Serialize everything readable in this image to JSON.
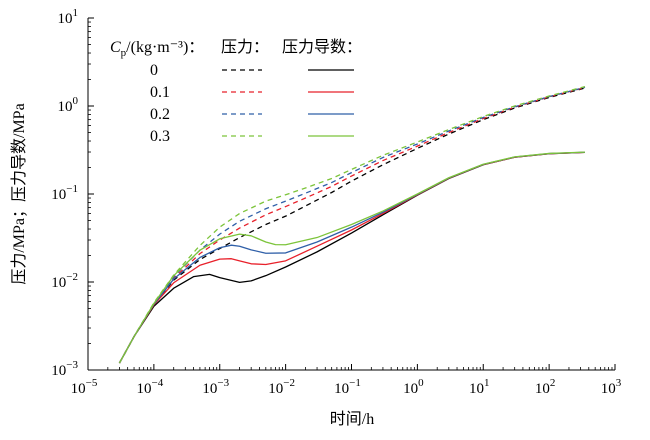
{
  "chart_data": {
    "type": "line",
    "xlabel": "时间/h",
    "ylabel": "压力/MPa；压力导数/MPa",
    "xscale": "log",
    "yscale": "log",
    "xlim": [
      1e-05,
      1000
    ],
    "ylim": [
      0.001,
      10
    ],
    "x_ticks": [
      {
        "value": 1e-05,
        "base": "10",
        "exp": "−5"
      },
      {
        "value": 0.0001,
        "base": "10",
        "exp": "−4"
      },
      {
        "value": 0.001,
        "base": "10",
        "exp": "−3"
      },
      {
        "value": 0.01,
        "base": "10",
        "exp": "−2"
      },
      {
        "value": 0.1,
        "base": "10",
        "exp": "−1"
      },
      {
        "value": 1,
        "base": "10",
        "exp": "0"
      },
      {
        "value": 10,
        "base": "10",
        "exp": "1"
      },
      {
        "value": 100,
        "base": "10",
        "exp": "2"
      },
      {
        "value": 1000,
        "base": "10",
        "exp": "3"
      }
    ],
    "y_ticks": [
      {
        "value": 0.001,
        "base": "10",
        "exp": "−3"
      },
      {
        "value": 0.01,
        "base": "10",
        "exp": "−2"
      },
      {
        "value": 0.1,
        "base": "10",
        "exp": "−1"
      },
      {
        "value": 1,
        "base": "10",
        "exp": "0"
      },
      {
        "value": 10,
        "base": "10",
        "exp": "1"
      }
    ],
    "grid": false,
    "legend": {
      "placement": "top-left",
      "header_var": "C",
      "header_sub": "p",
      "header_unit": "/(kg·m⁻³)：",
      "col_pressure": "压力：",
      "col_derivative": "压力导数：",
      "entries": [
        {
          "label": "0",
          "color": "#000000"
        },
        {
          "label": "0.1",
          "color": "#e8202a"
        },
        {
          "label": "0.2",
          "color": "#2f5fa8"
        },
        {
          "label": "0.3",
          "color": "#7cc43a"
        }
      ]
    },
    "series": [
      {
        "legend": "0",
        "kind": "pressure",
        "style": "dashed",
        "color": "#000000",
        "x": [
          3e-05,
          5e-05,
          0.0001,
          0.0002,
          0.0005,
          0.001,
          0.002,
          0.005,
          0.01,
          0.02,
          0.05,
          0.1,
          0.3,
          1,
          3,
          10,
          30,
          100,
          350
        ],
        "y": [
          0.0012,
          0.0024,
          0.0055,
          0.0105,
          0.018,
          0.024,
          0.032,
          0.045,
          0.056,
          0.073,
          0.104,
          0.14,
          0.215,
          0.33,
          0.48,
          0.7,
          0.95,
          1.25,
          1.6
        ]
      },
      {
        "legend": "0.1",
        "kind": "pressure",
        "style": "dashed",
        "color": "#e8202a",
        "x": [
          3e-05,
          5e-05,
          0.0001,
          0.0002,
          0.0005,
          0.001,
          0.002,
          0.005,
          0.01,
          0.02,
          0.05,
          0.1,
          0.3,
          1,
          3,
          10,
          30,
          100,
          350
        ],
        "y": [
          0.0012,
          0.0024,
          0.0056,
          0.011,
          0.021,
          0.03,
          0.041,
          0.058,
          0.072,
          0.09,
          0.122,
          0.16,
          0.24,
          0.35,
          0.5,
          0.72,
          0.97,
          1.27,
          1.62
        ]
      },
      {
        "legend": "0.2",
        "kind": "pressure",
        "style": "dashed",
        "color": "#2f5fa8",
        "x": [
          3e-05,
          5e-05,
          0.0001,
          0.0002,
          0.0005,
          0.001,
          0.002,
          0.005,
          0.01,
          0.02,
          0.05,
          0.1,
          0.3,
          1,
          3,
          10,
          30,
          100,
          350
        ],
        "y": [
          0.0012,
          0.0024,
          0.0057,
          0.0115,
          0.023,
          0.035,
          0.049,
          0.068,
          0.083,
          0.102,
          0.135,
          0.175,
          0.26,
          0.37,
          0.52,
          0.74,
          0.98,
          1.28,
          1.63
        ]
      },
      {
        "legend": "0.3",
        "kind": "pressure",
        "style": "dashed",
        "color": "#7cc43a",
        "x": [
          3e-05,
          5e-05,
          0.0001,
          0.0002,
          0.0005,
          0.001,
          0.002,
          0.005,
          0.01,
          0.02,
          0.05,
          0.1,
          0.3,
          1,
          3,
          10,
          30,
          100,
          350
        ],
        "y": [
          0.0012,
          0.0024,
          0.0058,
          0.012,
          0.026,
          0.042,
          0.06,
          0.083,
          0.098,
          0.117,
          0.15,
          0.19,
          0.275,
          0.39,
          0.54,
          0.76,
          1.0,
          1.3,
          1.66
        ]
      },
      {
        "legend": "0",
        "kind": "derivative",
        "style": "solid",
        "color": "#000000",
        "x": [
          3e-05,
          5e-05,
          0.0001,
          0.0002,
          0.0004,
          0.0007,
          0.001,
          0.002,
          0.003,
          0.005,
          0.01,
          0.03,
          0.1,
          0.3,
          1,
          3,
          10,
          30,
          100,
          350
        ],
        "y": [
          0.0012,
          0.0024,
          0.0053,
          0.0085,
          0.0115,
          0.0122,
          0.0112,
          0.0099,
          0.0103,
          0.0118,
          0.0148,
          0.022,
          0.036,
          0.058,
          0.097,
          0.15,
          0.215,
          0.262,
          0.287,
          0.297
        ]
      },
      {
        "legend": "0.1",
        "kind": "derivative",
        "style": "solid",
        "color": "#e8202a",
        "x": [
          3e-05,
          5e-05,
          0.0001,
          0.0002,
          0.0005,
          0.001,
          0.0015,
          0.002,
          0.003,
          0.005,
          0.01,
          0.03,
          0.1,
          0.3,
          1,
          3,
          10,
          30,
          100,
          350
        ],
        "y": [
          0.0012,
          0.0024,
          0.0055,
          0.0098,
          0.0155,
          0.0182,
          0.0184,
          0.0174,
          0.0161,
          0.0158,
          0.0174,
          0.0255,
          0.039,
          0.06,
          0.098,
          0.151,
          0.216,
          0.262,
          0.287,
          0.297
        ]
      },
      {
        "legend": "0.2",
        "kind": "derivative",
        "style": "solid",
        "color": "#2f5fa8",
        "x": [
          3e-05,
          5e-05,
          0.0001,
          0.0002,
          0.0005,
          0.001,
          0.0015,
          0.002,
          0.003,
          0.005,
          0.01,
          0.03,
          0.1,
          0.3,
          1,
          3,
          10,
          30,
          100,
          350
        ],
        "y": [
          0.0012,
          0.0024,
          0.0056,
          0.0108,
          0.019,
          0.0245,
          0.0262,
          0.0255,
          0.0232,
          0.0212,
          0.0214,
          0.0285,
          0.042,
          0.062,
          0.099,
          0.152,
          0.217,
          0.263,
          0.288,
          0.298
        ]
      },
      {
        "legend": "0.3",
        "kind": "derivative",
        "style": "solid",
        "color": "#7cc43a",
        "x": [
          3e-05,
          5e-05,
          0.0001,
          0.0002,
          0.0005,
          0.001,
          0.002,
          0.003,
          0.005,
          0.007,
          0.01,
          0.03,
          0.1,
          0.3,
          1,
          3,
          10,
          30,
          100,
          350
        ],
        "y": [
          0.0012,
          0.0024,
          0.0057,
          0.0118,
          0.023,
          0.031,
          0.035,
          0.0335,
          0.0285,
          0.0266,
          0.0265,
          0.032,
          0.045,
          0.064,
          0.1,
          0.153,
          0.218,
          0.264,
          0.289,
          0.299
        ]
      }
    ]
  }
}
